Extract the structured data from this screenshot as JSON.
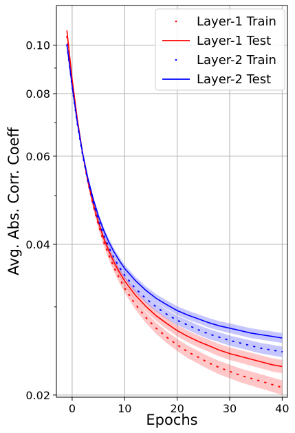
{
  "chart_data": {
    "type": "line",
    "title": "",
    "xlabel": "Epochs",
    "ylabel": "Avg. Abs. Corr. Coeff",
    "xlim": [
      -3,
      41
    ],
    "ylim": [
      0.0198,
      0.12
    ],
    "yscale": "log",
    "xticks": [
      0,
      10,
      20,
      30,
      40
    ],
    "yticks": [
      0.02,
      0.04,
      0.06,
      0.08,
      0.1
    ],
    "ytick_labels": [
      "0.02",
      "0.04",
      "0.06",
      "0.08",
      "0.10"
    ],
    "grid": true,
    "legend_position": "top-right",
    "x": [
      -1,
      0,
      1,
      2,
      3,
      4,
      5,
      6,
      7,
      8,
      9,
      10,
      12,
      14,
      16,
      18,
      20,
      22,
      24,
      26,
      28,
      30,
      32,
      34,
      36,
      38,
      40
    ],
    "series": [
      {
        "name": "Layer-1 Train",
        "style": "dotted",
        "color": "#ff0000",
        "values": [
          0.104,
          0.0845,
          0.0705,
          0.0605,
          0.0532,
          0.0478,
          0.0437,
          0.0405,
          0.038,
          0.0359,
          0.0342,
          0.0327,
          0.0304,
          0.0286,
          0.0272,
          0.0261,
          0.0252,
          0.0244,
          0.0238,
          0.0232,
          0.0227,
          0.0223,
          0.0219,
          0.0216,
          0.0213,
          0.021,
          0.0207
        ],
        "band": 0.0007
      },
      {
        "name": "Layer-1 Test",
        "style": "solid",
        "color": "#ff0000",
        "values": [
          0.107,
          0.0855,
          0.071,
          0.0608,
          0.0535,
          0.0482,
          0.0443,
          0.0412,
          0.0388,
          0.0368,
          0.0352,
          0.0338,
          0.0317,
          0.0301,
          0.0288,
          0.0278,
          0.0269,
          0.0262,
          0.0256,
          0.0251,
          0.0246,
          0.0242,
          0.0239,
          0.0236,
          0.0233,
          0.023,
          0.0228
        ],
        "band": 0.0007
      },
      {
        "name": "Layer-2 Train",
        "style": "dotted",
        "color": "#0000ff",
        "values": [
          0.1,
          0.0825,
          0.0695,
          0.0602,
          0.0535,
          0.0485,
          0.0447,
          0.0418,
          0.0394,
          0.0375,
          0.036,
          0.0347,
          0.0327,
          0.0312,
          0.03,
          0.029,
          0.0282,
          0.0276,
          0.027,
          0.0265,
          0.0261,
          0.0257,
          0.0254,
          0.0251,
          0.0248,
          0.0246,
          0.0244
        ],
        "band": 0.0006
      },
      {
        "name": "Layer-2 Test",
        "style": "solid",
        "color": "#0000ff",
        "values": [
          0.1005,
          0.0828,
          0.07,
          0.0608,
          0.0542,
          0.0493,
          0.0456,
          0.0427,
          0.0404,
          0.0386,
          0.0371,
          0.0358,
          0.0339,
          0.0324,
          0.0312,
          0.0303,
          0.0295,
          0.0289,
          0.0284,
          0.0279,
          0.0275,
          0.0272,
          0.0269,
          0.0266,
          0.0264,
          0.0262,
          0.026
        ],
        "band": 0.0006
      }
    ]
  }
}
